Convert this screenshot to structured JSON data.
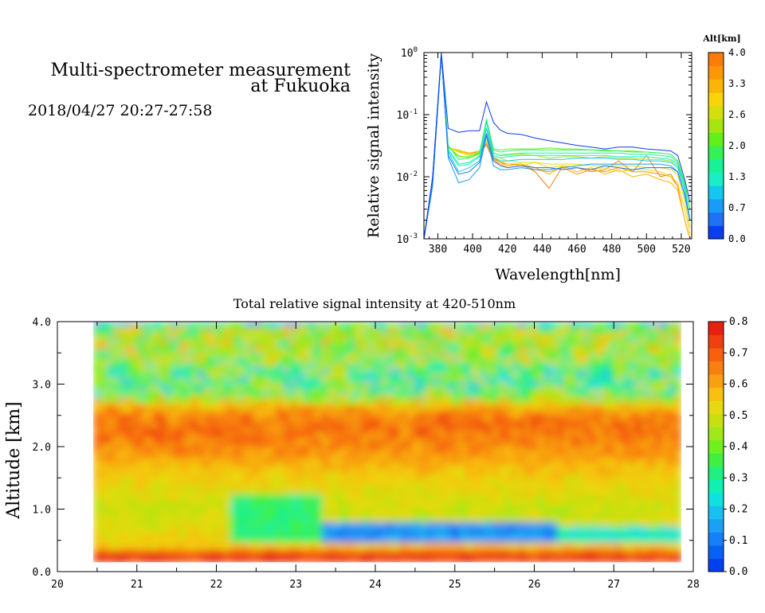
{
  "header": {
    "title_line1": "Multi-spectrometer measurement",
    "title_line2": "at Fukuoka",
    "datetime": "2018/04/27 20:27-27:58"
  },
  "chart_data": [
    {
      "type": "line",
      "xlabel": "Wavelength[nm]",
      "ylabel": "Relative signal intensity",
      "xlim": [
        372,
        526
      ],
      "ylim": [
        0.001,
        1
      ],
      "yscale": "log",
      "x_ticks": [
        "380",
        "400",
        "420",
        "440",
        "460",
        "480",
        "500",
        "520"
      ],
      "y_ticks": [
        {
          "label": "10",
          "exp": "-3"
        },
        {
          "label": "10",
          "exp": "-2"
        },
        {
          "label": "10",
          "exp": "-1"
        },
        {
          "label": "10",
          "exp": "0"
        }
      ],
      "colorbar": {
        "title": "Alt[km]",
        "ticks": [
          "0.0",
          "0.7",
          "1.3",
          "2.0",
          "2.6",
          "3.3",
          "4.0"
        ],
        "colors": [
          "#0a3cf0",
          "#1f72f5",
          "#199cf8",
          "#13c8ee",
          "#19eec6",
          "#18f196",
          "#34f255",
          "#62ef1c",
          "#a6e50f",
          "#d3e00d",
          "#f7d508",
          "#fbb505",
          "#fc9707",
          "#fa7d0b"
        ]
      },
      "x": [
        372,
        377,
        382,
        386,
        392,
        398,
        404,
        408,
        412,
        416,
        420,
        428,
        436,
        444,
        452,
        460,
        468,
        476,
        484,
        492,
        500,
        508,
        514,
        518,
        522,
        525
      ],
      "series": [
        {
          "color": "#0a3cf0",
          "values": [
            0.001,
            0.01,
            1.0,
            0.06,
            0.052,
            0.055,
            0.055,
            0.16,
            0.075,
            0.056,
            0.05,
            0.048,
            0.042,
            0.038,
            0.035,
            0.032,
            0.03,
            0.028,
            0.03,
            0.03,
            0.028,
            0.027,
            0.026,
            0.022,
            0.009,
            0.004
          ]
        },
        {
          "color": "#1f72f5",
          "values": [
            0.001,
            0.008,
            0.9,
            0.022,
            0.011,
            0.012,
            0.017,
            0.05,
            0.018,
            0.015,
            0.014,
            0.015,
            0.014,
            0.014,
            0.013,
            0.014,
            0.013,
            0.015,
            0.014,
            0.013,
            0.014,
            0.014,
            0.014,
            0.012,
            0.005,
            0.002
          ]
        },
        {
          "color": "#199cf8",
          "values": [
            0.001,
            0.007,
            0.92,
            0.02,
            0.008,
            0.009,
            0.014,
            0.045,
            0.015,
            0.013,
            0.013,
            0.014,
            0.013,
            0.013,
            0.014,
            0.015,
            0.016,
            0.016,
            0.016,
            0.016,
            0.016,
            0.016,
            0.015,
            0.012,
            0.005,
            0.002
          ]
        },
        {
          "color": "#13c8ee",
          "values": [
            0.001,
            0.008,
            0.93,
            0.025,
            0.012,
            0.014,
            0.018,
            0.06,
            0.02,
            0.018,
            0.018,
            0.019,
            0.019,
            0.019,
            0.019,
            0.02,
            0.02,
            0.02,
            0.019,
            0.019,
            0.018,
            0.018,
            0.017,
            0.014,
            0.006,
            0.002
          ]
        },
        {
          "color": "#19eec6",
          "values": [
            0.001,
            0.008,
            0.94,
            0.026,
            0.015,
            0.016,
            0.021,
            0.075,
            0.022,
            0.02,
            0.021,
            0.022,
            0.022,
            0.022,
            0.022,
            0.022,
            0.022,
            0.022,
            0.021,
            0.021,
            0.021,
            0.02,
            0.019,
            0.016,
            0.007,
            0.002
          ]
        },
        {
          "color": "#18f196",
          "values": [
            0.001,
            0.009,
            0.95,
            0.028,
            0.016,
            0.017,
            0.022,
            0.08,
            0.024,
            0.022,
            0.023,
            0.024,
            0.024,
            0.024,
            0.024,
            0.024,
            0.024,
            0.024,
            0.024,
            0.023,
            0.023,
            0.022,
            0.021,
            0.017,
            0.007,
            0.002
          ]
        },
        {
          "color": "#34f255",
          "values": [
            0.001,
            0.009,
            0.96,
            0.032,
            0.019,
            0.02,
            0.024,
            0.085,
            0.027,
            0.025,
            0.026,
            0.027,
            0.027,
            0.027,
            0.027,
            0.027,
            0.027,
            0.026,
            0.026,
            0.025,
            0.025,
            0.024,
            0.023,
            0.018,
            0.008,
            0.003
          ]
        },
        {
          "color": "#62ef1c",
          "values": [
            0.001,
            0.009,
            0.95,
            0.03,
            0.021,
            0.021,
            0.025,
            0.08,
            0.028,
            0.027,
            0.028,
            0.028,
            0.028,
            0.029,
            0.028,
            0.028,
            0.027,
            0.027,
            0.026,
            0.026,
            0.025,
            0.024,
            0.023,
            0.018,
            0.008,
            0.003
          ]
        },
        {
          "color": "#a6e50f",
          "values": [
            0.001,
            0.009,
            0.94,
            0.03,
            0.022,
            0.02,
            0.023,
            0.06,
            0.024,
            0.022,
            0.022,
            0.023,
            0.022,
            0.02,
            0.021,
            0.021,
            0.02,
            0.021,
            0.02,
            0.02,
            0.019,
            0.019,
            0.018,
            0.015,
            0.006,
            0.002
          ]
        },
        {
          "color": "#d3e00d",
          "values": [
            0.001,
            0.009,
            0.93,
            0.03,
            0.025,
            0.022,
            0.024,
            0.045,
            0.022,
            0.02,
            0.018,
            0.017,
            0.017,
            0.016,
            0.016,
            0.016,
            0.015,
            0.015,
            0.015,
            0.015,
            0.014,
            0.014,
            0.013,
            0.011,
            0.004,
            0.0015
          ]
        },
        {
          "color": "#f7d508",
          "values": [
            0.001,
            0.009,
            0.93,
            0.03,
            0.026,
            0.023,
            0.025,
            0.038,
            0.021,
            0.018,
            0.016,
            0.015,
            0.017,
            0.014,
            0.015,
            0.014,
            0.013,
            0.014,
            0.012,
            0.013,
            0.013,
            0.012,
            0.01,
            0.008,
            0.003,
            0.0012
          ]
        },
        {
          "color": "#fbb505",
          "values": [
            0.001,
            0.009,
            0.93,
            0.029,
            0.027,
            0.024,
            0.026,
            0.035,
            0.02,
            0.017,
            0.015,
            0.016,
            0.014,
            0.011,
            0.015,
            0.012,
            0.014,
            0.011,
            0.013,
            0.01,
            0.011,
            0.009,
            0.008,
            0.006,
            0.002,
            0.001
          ]
        },
        {
          "color": "#fc9707",
          "values": [
            0.001,
            0.009,
            0.93,
            0.029,
            0.026,
            0.023,
            0.025,
            0.032,
            0.018,
            0.016,
            0.014,
            0.015,
            0.013,
            0.012,
            0.014,
            0.011,
            0.013,
            0.012,
            0.014,
            0.012,
            0.012,
            0.011,
            0.01,
            0.007,
            0.002,
            0.001
          ]
        },
        {
          "color": "#fa7d0b",
          "values": [
            0.001,
            0.009,
            0.93,
            0.03,
            0.025,
            0.024,
            0.025,
            0.034,
            0.019,
            0.017,
            0.016,
            0.016,
            0.012,
            0.0065,
            0.015,
            0.014,
            0.012,
            0.013,
            0.018,
            0.012,
            0.022,
            0.01,
            0.011,
            0.007,
            0.002,
            0.001
          ]
        }
      ]
    },
    {
      "type": "heatmap",
      "title": "Total relative signal intensity at 420-510nm",
      "xlabel": "",
      "ylabel": "Altitude [km]",
      "xlim": [
        20,
        28
      ],
      "ylim": [
        0,
        4
      ],
      "x_ticks": [
        "20",
        "21",
        "22",
        "23",
        "24",
        "25",
        "26",
        "27",
        "28"
      ],
      "y_ticks": [
        "0.0",
        "1.0",
        "2.0",
        "3.0",
        "4.0"
      ],
      "data_x_range": [
        20.45,
        27.85
      ],
      "data_y_range": [
        0.15,
        4.0
      ],
      "colorbar": {
        "ticks": [
          "0.0",
          "0.1",
          "0.2",
          "0.3",
          "0.4",
          "0.5",
          "0.6",
          "0.7",
          "0.8"
        ],
        "range": [
          0,
          0.8
        ],
        "colors": [
          "#0040f0",
          "#0a60f5",
          "#1680f8",
          "#1aa0f5",
          "#18c0f0",
          "#10e0e0",
          "#10f0b0",
          "#20f080",
          "#40f040",
          "#70f020",
          "#a0e818",
          "#c8e010",
          "#e8d810",
          "#f8c010",
          "#f8a010",
          "#f88010",
          "#f86010",
          "#f04010",
          "#e82010"
        ]
      },
      "profile_altitudes": [
        0.0,
        0.15,
        0.22,
        0.3,
        0.4,
        0.6,
        0.8,
        1.0,
        1.3,
        1.6,
        1.9,
        2.2,
        2.4,
        2.6,
        2.8,
        3.0,
        3.2,
        3.4,
        3.6,
        3.8,
        3.95,
        4.0
      ],
      "profile_values": [
        0.0,
        0.72,
        0.7,
        0.62,
        0.56,
        0.53,
        0.5,
        0.49,
        0.52,
        0.56,
        0.62,
        0.67,
        0.68,
        0.62,
        0.42,
        0.35,
        0.36,
        0.42,
        0.44,
        0.45,
        0.42,
        0.02
      ],
      "features": [
        {
          "x": [
            23.3,
            26.3
          ],
          "y": [
            0.45,
            0.8
          ],
          "value": 0.13
        },
        {
          "x": [
            22.2,
            23.3
          ],
          "y": [
            0.5,
            1.25
          ],
          "value": 0.33
        },
        {
          "x": [
            26.3,
            27.85
          ],
          "y": [
            0.45,
            0.75
          ],
          "value": 0.26
        },
        {
          "x": [
            20.45,
            27.85
          ],
          "y": [
            0.15,
            0.33
          ],
          "value": 0.74
        }
      ]
    }
  ]
}
